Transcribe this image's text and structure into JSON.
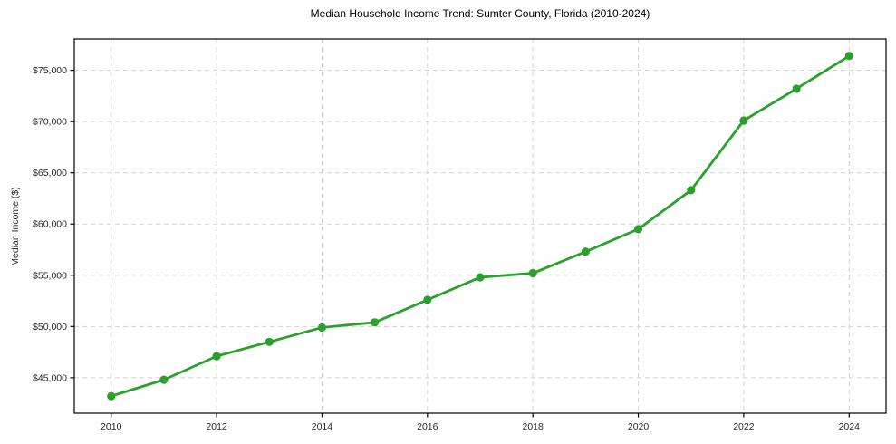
{
  "chart_data": {
    "type": "line",
    "title": "Median Household Income Trend: Sumter County, Florida (2010-2024)",
    "ylabel": "Median Income ($)",
    "xlabel": "",
    "x": [
      2010,
      2011,
      2012,
      2013,
      2014,
      2015,
      2016,
      2017,
      2018,
      2019,
      2020,
      2021,
      2022,
      2023,
      2024
    ],
    "series": [
      {
        "name": "Median Household Income",
        "color": "#2ca02c",
        "values": [
          43200,
          44800,
          47100,
          48500,
          49900,
          50400,
          52600,
          54800,
          55200,
          57300,
          59500,
          63300,
          70100,
          73200,
          76400
        ]
      }
    ],
    "xticks": [
      {
        "value": 2010,
        "label": "2010"
      },
      {
        "value": 2012,
        "label": "2012"
      },
      {
        "value": 2014,
        "label": "2014"
      },
      {
        "value": 2016,
        "label": "2016"
      },
      {
        "value": 2018,
        "label": "2018"
      },
      {
        "value": 2020,
        "label": "2020"
      },
      {
        "value": 2022,
        "label": "2022"
      },
      {
        "value": 2024,
        "label": "2024"
      }
    ],
    "yticks": [
      {
        "value": 45000,
        "label": "$45,000"
      },
      {
        "value": 50000,
        "label": "$50,000"
      },
      {
        "value": 55000,
        "label": "$55,000"
      },
      {
        "value": 60000,
        "label": "$60,000"
      },
      {
        "value": 65000,
        "label": "$65,000"
      },
      {
        "value": 70000,
        "label": "$70,000"
      },
      {
        "value": 75000,
        "label": "$75,000"
      }
    ],
    "xlim": [
      2009.3,
      2024.7
    ],
    "ylim": [
      41540,
      78060
    ],
    "grid": {
      "visible": true,
      "line_style": "dashed",
      "color": "#d2d2d2"
    },
    "legend": {
      "visible": false
    },
    "colors": {
      "line": "#2ca02c",
      "marker": "#2ca02c",
      "spine": "#000000",
      "tick": "#000000",
      "tick_label": "#262626",
      "title": "#000000",
      "background": "#ffffff"
    },
    "marker_style": "circle",
    "line_width": 2.8,
    "marker_radius": 4.6
  }
}
